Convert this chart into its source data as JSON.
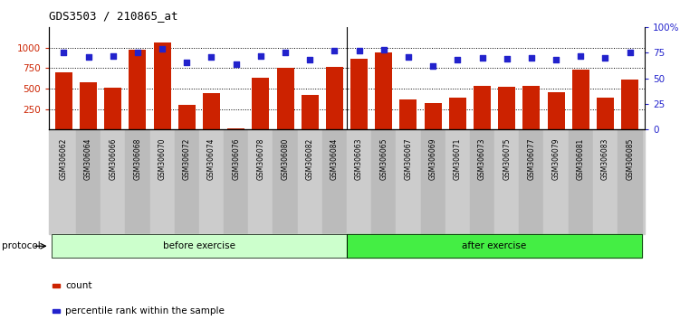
{
  "title": "GDS3503 / 210865_at",
  "categories": [
    "GSM306062",
    "GSM306064",
    "GSM306066",
    "GSM306068",
    "GSM306070",
    "GSM306072",
    "GSM306074",
    "GSM306076",
    "GSM306078",
    "GSM306080",
    "GSM306082",
    "GSM306084",
    "GSM306063",
    "GSM306065",
    "GSM306067",
    "GSM306069",
    "GSM306071",
    "GSM306073",
    "GSM306075",
    "GSM306077",
    "GSM306079",
    "GSM306081",
    "GSM306083",
    "GSM306085"
  ],
  "counts": [
    700,
    580,
    510,
    980,
    1060,
    300,
    450,
    10,
    630,
    750,
    420,
    770,
    860,
    940,
    370,
    320,
    390,
    530,
    520,
    530,
    460,
    730,
    390,
    610
  ],
  "percentiles": [
    75,
    71,
    72,
    75,
    79,
    66,
    71,
    64,
    72,
    75,
    68,
    77,
    77,
    78,
    71,
    62,
    68,
    70,
    69,
    70,
    68,
    72,
    70,
    75
  ],
  "bar_color": "#CC2200",
  "dot_color": "#2222CC",
  "left_ylim": [
    0,
    1250
  ],
  "right_ylim": [
    0,
    100
  ],
  "left_yticks": [
    250,
    500,
    750,
    1000
  ],
  "right_yticks": [
    0,
    25,
    50,
    75,
    100
  ],
  "right_yticklabels": [
    "0",
    "25",
    "50",
    "75",
    "100%"
  ],
  "grid_lines": [
    250,
    500,
    750,
    1000
  ],
  "n_before": 12,
  "n_after": 12,
  "before_label": "before exercise",
  "after_label": "after exercise",
  "protocol_label": "protocol",
  "legend_count": "count",
  "legend_percentile": "percentile rank within the sample",
  "before_color": "#CCFFCC",
  "after_color": "#44EE44",
  "xtick_bg_color": "#CCCCCC",
  "title_fontsize": 9,
  "label_color_left": "#CC2200",
  "label_color_right": "#2222CC"
}
